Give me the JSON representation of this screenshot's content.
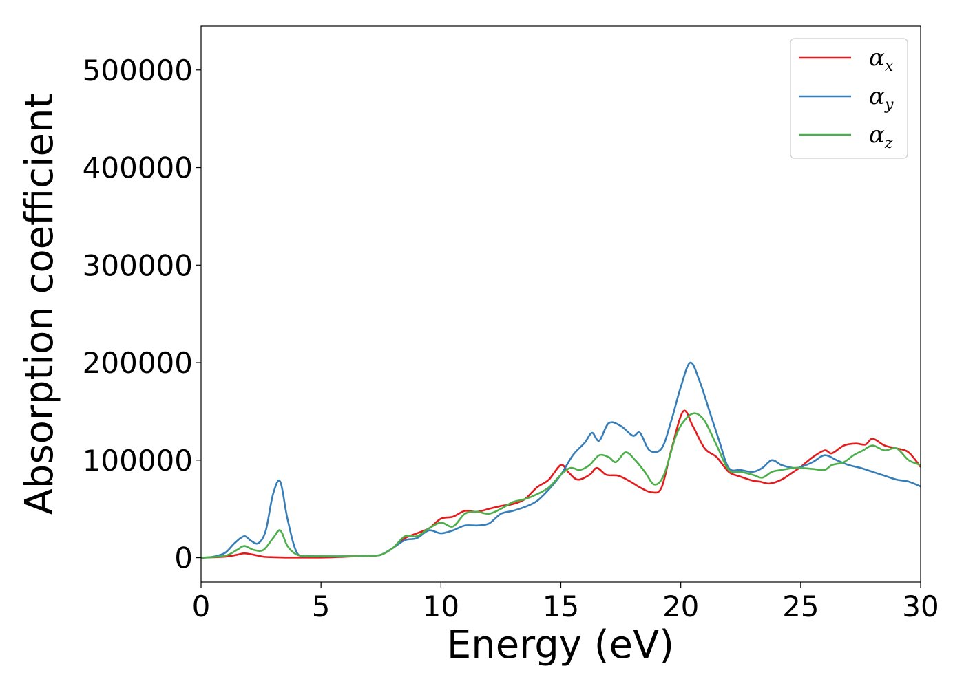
{
  "chart_data": {
    "type": "line",
    "xlabel": "Energy (eV)",
    "ylabel": "Absorption coefficient",
    "xlim": [
      0,
      30
    ],
    "ylim": [
      -25000,
      545000
    ],
    "xticks": [
      0,
      5,
      10,
      15,
      20,
      25,
      30
    ],
    "yticks": [
      0,
      100000,
      200000,
      300000,
      400000,
      500000
    ],
    "grid": false,
    "legend_position": "top-right",
    "series": [
      {
        "name": "αx",
        "label_base": "α",
        "label_sub": "x",
        "color": "#e41a1c",
        "x": [
          0,
          1,
          1.5,
          1.8,
          2.2,
          2.6,
          3,
          3.5,
          4,
          5,
          6,
          7,
          7.5,
          8,
          8.5,
          9,
          9.5,
          10,
          10.5,
          11,
          11.5,
          12,
          12.5,
          13,
          13.5,
          14,
          14.5,
          15,
          15.3,
          15.7,
          16.2,
          16.5,
          16.9,
          17.4,
          17.9,
          18.3,
          18.8,
          19.2,
          19.6,
          20.1,
          20.5,
          21,
          21.5,
          22,
          22.5,
          23,
          23.3,
          23.7,
          24.2,
          24.7,
          25,
          25.5,
          26,
          26.3,
          26.8,
          27.3,
          27.7,
          28,
          28.5,
          29,
          29.5,
          30
        ],
        "y": [
          0,
          1000,
          3000,
          4500,
          3000,
          1000,
          500,
          200,
          200,
          200,
          1000,
          2000,
          3000,
          10000,
          20000,
          25000,
          30000,
          40000,
          42000,
          48000,
          47000,
          50000,
          53000,
          55000,
          60000,
          72000,
          80000,
          95000,
          88000,
          80000,
          85000,
          92000,
          85000,
          84000,
          78000,
          72000,
          67000,
          72000,
          110000,
          150000,
          135000,
          112000,
          103000,
          88000,
          83000,
          79000,
          78000,
          76000,
          80000,
          88000,
          93000,
          103000,
          110000,
          107000,
          115000,
          117000,
          116000,
          122000,
          115000,
          112000,
          108000,
          93000
        ]
      },
      {
        "name": "αy",
        "label_base": "α",
        "label_sub": "y",
        "color": "#377eb8",
        "x": [
          0,
          0.5,
          1,
          1.4,
          1.8,
          2.1,
          2.4,
          2.7,
          3,
          3.3,
          3.6,
          4,
          4.5,
          5,
          6,
          7,
          7.5,
          8,
          8.5,
          9,
          9.5,
          10,
          10.5,
          11,
          11.5,
          12,
          12.5,
          13,
          13.5,
          14,
          14.5,
          15,
          15.5,
          16,
          16.3,
          16.6,
          17,
          17.5,
          18,
          18.3,
          18.7,
          19.2,
          19.6,
          20,
          20.4,
          20.8,
          21.2,
          21.6,
          22,
          22.5,
          23,
          23.4,
          23.8,
          24.2,
          24.7,
          25,
          25.5,
          26,
          26.5,
          27,
          27.5,
          28,
          28.5,
          29,
          29.5,
          30
        ],
        "y": [
          0,
          1000,
          5000,
          15000,
          22000,
          17000,
          15000,
          28000,
          65000,
          78000,
          40000,
          5000,
          2000,
          1500,
          1500,
          2000,
          3000,
          10000,
          18000,
          20000,
          28000,
          25000,
          28000,
          33000,
          33000,
          35000,
          45000,
          48000,
          52000,
          58000,
          70000,
          85000,
          105000,
          118000,
          128000,
          120000,
          138000,
          135000,
          125000,
          128000,
          110000,
          112000,
          140000,
          175000,
          200000,
          180000,
          150000,
          120000,
          92000,
          90000,
          88000,
          92000,
          100000,
          95000,
          92000,
          93000,
          98000,
          105000,
          100000,
          95000,
          92000,
          88000,
          84000,
          80000,
          78000,
          73000
        ]
      },
      {
        "name": "αz",
        "label_base": "α",
        "label_sub": "z",
        "color": "#4daf4a",
        "x": [
          0,
          1,
          1.5,
          1.8,
          2.2,
          2.6,
          3,
          3.3,
          3.6,
          4,
          4.5,
          5,
          6,
          7,
          7.5,
          8,
          8.5,
          9,
          9.5,
          10,
          10.5,
          11,
          11.5,
          12,
          12.5,
          13,
          13.5,
          14,
          14.5,
          15,
          15.4,
          15.8,
          16.2,
          16.6,
          17,
          17.3,
          17.7,
          18.1,
          18.5,
          18.9,
          19.3,
          19.8,
          20.2,
          20.6,
          21,
          21.5,
          22,
          22.5,
          23,
          23.4,
          23.8,
          24.2,
          24.7,
          25,
          25.5,
          26,
          26.3,
          26.8,
          27.2,
          27.6,
          28,
          28.5,
          29,
          29.5,
          30
        ],
        "y": [
          0,
          2000,
          8000,
          12000,
          8000,
          8000,
          20000,
          28000,
          12000,
          3000,
          1500,
          1500,
          1500,
          2000,
          3000,
          10000,
          22000,
          22000,
          30000,
          36000,
          32000,
          45000,
          47000,
          45000,
          50000,
          57000,
          60000,
          65000,
          72000,
          85000,
          92000,
          90000,
          95000,
          105000,
          103000,
          98000,
          108000,
          100000,
          88000,
          75000,
          85000,
          125000,
          142000,
          148000,
          140000,
          115000,
          90000,
          88000,
          85000,
          82000,
          88000,
          90000,
          92000,
          92000,
          91000,
          90000,
          95000,
          98000,
          105000,
          110000,
          115000,
          110000,
          112000,
          100000,
          95000
        ]
      }
    ]
  }
}
